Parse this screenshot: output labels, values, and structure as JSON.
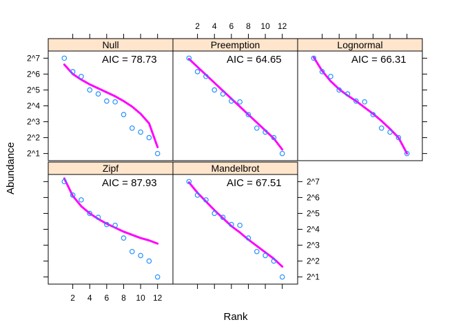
{
  "chart_data": {
    "type": "scatter",
    "xlabel": "Rank",
    "ylabel": "Abundance",
    "x_ticks": [
      2,
      4,
      6,
      8,
      10,
      12
    ],
    "y_ticks": [
      1,
      2,
      3,
      4,
      5,
      6,
      7
    ],
    "y_tick_labels": [
      "2^1",
      "2^2",
      "2^3",
      "2^4",
      "2^5",
      "2^6",
      "2^7"
    ],
    "y_scale": "log2",
    "xlim": [
      0,
      13
    ],
    "ylim": [
      0.55,
      7.45
    ],
    "grid": false,
    "observed": {
      "rank": [
        1,
        2,
        3,
        4,
        5,
        6,
        7,
        8,
        9,
        10,
        11,
        12
      ],
      "log2_abundance": [
        7.0,
        6.15,
        5.85,
        5.0,
        4.75,
        4.3,
        4.25,
        3.45,
        2.6,
        2.35,
        2.0,
        1.0
      ]
    },
    "colors": {
      "points": "#1e90ff",
      "fit": "#ff00ff",
      "strip": "#ffe5cc"
    },
    "panels": [
      {
        "name": "Null",
        "aic_text": "AIC = 78.73",
        "aic": 78.73,
        "fit_log2": [
          6.6,
          6.0,
          5.65,
          5.35,
          5.1,
          4.85,
          4.6,
          4.3,
          3.95,
          3.5,
          2.9,
          1.4
        ]
      },
      {
        "name": "Preemption",
        "aic_text": "AIC = 64.65",
        "aic": 64.65,
        "fit_log2": [
          6.95,
          6.45,
          5.95,
          5.45,
          4.95,
          4.45,
          3.95,
          3.45,
          2.95,
          2.45,
          1.95,
          1.25
        ]
      },
      {
        "name": "Lognormal",
        "aic_text": "AIC = 66.31",
        "aic": 66.31,
        "fit_log2": [
          7.05,
          6.2,
          5.55,
          5.05,
          4.65,
          4.3,
          3.9,
          3.5,
          3.05,
          2.55,
          2.0,
          1.0
        ]
      },
      {
        "name": "Zipf",
        "aic_text": "AIC = 87.93",
        "aic": 87.93,
        "fit_log2": [
          7.2,
          6.1,
          5.45,
          5.0,
          4.65,
          4.35,
          4.1,
          3.85,
          3.65,
          3.45,
          3.3,
          3.1
        ]
      },
      {
        "name": "Mandelbrot",
        "aic_text": "AIC = 67.51",
        "aic": 67.51,
        "fit_log2": [
          6.95,
          6.3,
          5.75,
          5.2,
          4.7,
          4.2,
          3.8,
          3.35,
          2.95,
          2.55,
          2.15,
          1.65
        ]
      }
    ]
  }
}
